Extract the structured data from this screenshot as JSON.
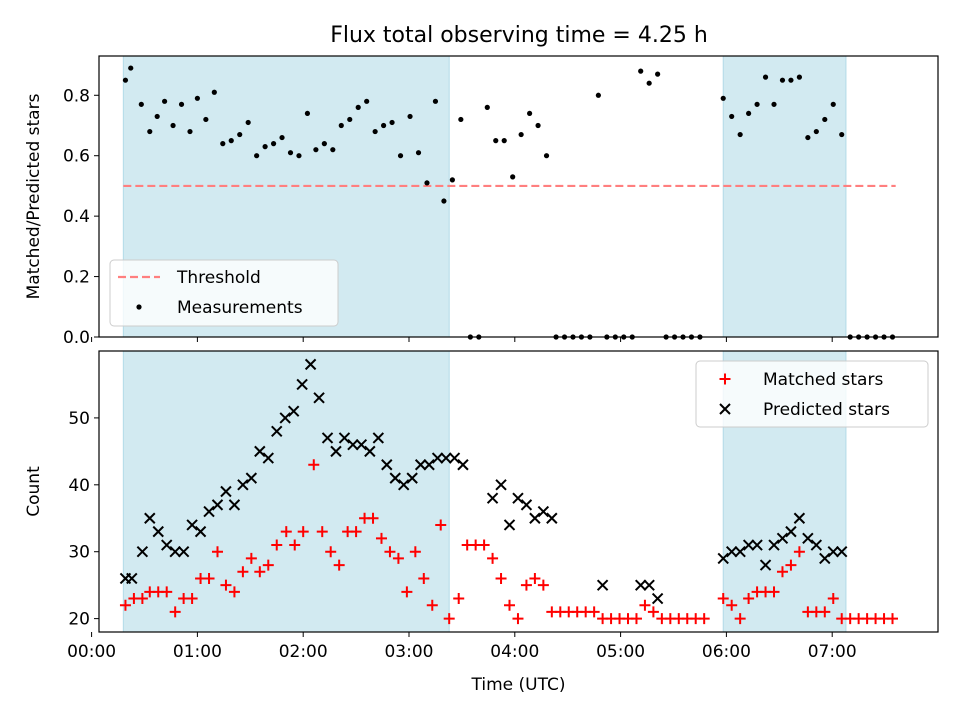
{
  "title": "Flux total observing time = 4.25 h",
  "colors": {
    "background": "#ffffff",
    "shade": "#add8e6",
    "threshold": "#ff7f7f",
    "measurements": "#000000",
    "matched": "#ff0000",
    "predicted": "#000000"
  },
  "chart_data": [
    {
      "type": "scatter",
      "panel": "top",
      "xlabel": "",
      "ylabel": "Matched/Predicted stars",
      "xlim": [
        0.07,
        8.0
      ],
      "ylim": [
        0,
        0.93
      ],
      "yticks": [
        0.0,
        0.2,
        0.4,
        0.6,
        0.8
      ],
      "ytick_labels": [
        "0.0",
        "0.2",
        "0.4",
        "0.6",
        "0.8"
      ],
      "xticks": [
        0,
        1,
        2,
        3,
        4,
        5,
        6,
        7
      ],
      "grid": false,
      "legend": {
        "placement": "lower-left",
        "entries": [
          "Threshold",
          "Measurements"
        ]
      },
      "shaded_intervals": [
        [
          0.3,
          3.38
        ],
        [
          5.97,
          7.13
        ]
      ],
      "threshold": {
        "name": "Threshold",
        "y": 0.5,
        "x_range": [
          0.3,
          7.6
        ]
      },
      "series": [
        {
          "name": "Measurements",
          "points": [
            [
              0.32,
              0.85
            ],
            [
              0.37,
              0.89
            ],
            [
              0.47,
              0.77
            ],
            [
              0.55,
              0.68
            ],
            [
              0.62,
              0.73
            ],
            [
              0.69,
              0.78
            ],
            [
              0.77,
              0.7
            ],
            [
              0.85,
              0.77
            ],
            [
              0.93,
              0.68
            ],
            [
              1.0,
              0.79
            ],
            [
              1.08,
              0.72
            ],
            [
              1.16,
              0.81
            ],
            [
              1.24,
              0.64
            ],
            [
              1.32,
              0.65
            ],
            [
              1.4,
              0.67
            ],
            [
              1.48,
              0.71
            ],
            [
              1.56,
              0.6
            ],
            [
              1.64,
              0.63
            ],
            [
              1.72,
              0.64
            ],
            [
              1.8,
              0.66
            ],
            [
              1.88,
              0.61
            ],
            [
              1.96,
              0.6
            ],
            [
              2.04,
              0.74
            ],
            [
              2.12,
              0.62
            ],
            [
              2.2,
              0.64
            ],
            [
              2.28,
              0.62
            ],
            [
              2.36,
              0.7
            ],
            [
              2.44,
              0.72
            ],
            [
              2.52,
              0.76
            ],
            [
              2.6,
              0.78
            ],
            [
              2.68,
              0.68
            ],
            [
              2.76,
              0.7
            ],
            [
              2.84,
              0.71
            ],
            [
              2.92,
              0.6
            ],
            [
              3.01,
              0.73
            ],
            [
              3.09,
              0.61
            ],
            [
              3.17,
              0.51
            ],
            [
              3.25,
              0.78
            ],
            [
              3.33,
              0.45
            ],
            [
              3.41,
              0.52
            ],
            [
              3.49,
              0.72
            ],
            [
              3.58,
              0.0
            ],
            [
              3.66,
              0.0
            ],
            [
              3.74,
              0.76
            ],
            [
              3.82,
              0.65
            ],
            [
              3.9,
              0.65
            ],
            [
              3.98,
              0.53
            ],
            [
              4.06,
              0.67
            ],
            [
              4.14,
              0.74
            ],
            [
              4.22,
              0.7
            ],
            [
              4.3,
              0.6
            ],
            [
              4.39,
              0.0
            ],
            [
              4.47,
              0.0
            ],
            [
              4.55,
              0.0
            ],
            [
              4.63,
              0.0
            ],
            [
              4.71,
              0.0
            ],
            [
              4.79,
              0.8
            ],
            [
              4.87,
              0.0
            ],
            [
              4.95,
              0.0
            ],
            [
              5.03,
              0.0
            ],
            [
              5.11,
              0.0
            ],
            [
              5.19,
              0.88
            ],
            [
              5.27,
              0.84
            ],
            [
              5.35,
              0.87
            ],
            [
              5.43,
              0.0
            ],
            [
              5.51,
              0.0
            ],
            [
              5.59,
              0.0
            ],
            [
              5.67,
              0.0
            ],
            [
              5.75,
              0.0
            ],
            [
              5.97,
              0.79
            ],
            [
              6.05,
              0.73
            ],
            [
              6.13,
              0.67
            ],
            [
              6.21,
              0.74
            ],
            [
              6.29,
              0.77
            ],
            [
              6.37,
              0.86
            ],
            [
              6.45,
              0.77
            ],
            [
              6.53,
              0.85
            ],
            [
              6.61,
              0.85
            ],
            [
              6.69,
              0.86
            ],
            [
              6.77,
              0.66
            ],
            [
              6.85,
              0.68
            ],
            [
              6.93,
              0.72
            ],
            [
              7.01,
              0.77
            ],
            [
              7.09,
              0.67
            ],
            [
              7.17,
              0.0
            ],
            [
              7.25,
              0.0
            ],
            [
              7.33,
              0.0
            ],
            [
              7.41,
              0.0
            ],
            [
              7.49,
              0.0
            ],
            [
              7.57,
              0.0
            ]
          ]
        }
      ]
    },
    {
      "type": "scatter",
      "panel": "bottom",
      "xlabel": "Time (UTC)",
      "ylabel": "Count",
      "xlim": [
        0.07,
        8.0
      ],
      "ylim": [
        18,
        60
      ],
      "yticks": [
        20,
        30,
        40,
        50
      ],
      "ytick_labels": [
        "20",
        "30",
        "40",
        "50"
      ],
      "xticks": [
        0,
        1,
        2,
        3,
        4,
        5,
        6,
        7
      ],
      "xtick_labels": [
        "00:00",
        "01:00",
        "02:00",
        "03:00",
        "04:00",
        "05:00",
        "06:00",
        "07:00"
      ],
      "grid": false,
      "legend": {
        "placement": "top-right",
        "entries": [
          "Matched stars",
          "Predicted stars"
        ]
      },
      "shaded_intervals": [
        [
          0.3,
          3.38
        ],
        [
          5.97,
          7.13
        ]
      ],
      "series": [
        {
          "name": "Matched stars",
          "marker": "+",
          "points": [
            [
              0.32,
              22
            ],
            [
              0.4,
              23
            ],
            [
              0.48,
              23
            ],
            [
              0.55,
              24
            ],
            [
              0.63,
              24
            ],
            [
              0.71,
              24
            ],
            [
              0.79,
              21
            ],
            [
              0.87,
              23
            ],
            [
              0.95,
              23
            ],
            [
              1.03,
              26
            ],
            [
              1.11,
              26
            ],
            [
              1.19,
              30
            ],
            [
              1.27,
              25
            ],
            [
              1.35,
              24
            ],
            [
              1.43,
              27
            ],
            [
              1.51,
              29
            ],
            [
              1.59,
              27
            ],
            [
              1.67,
              28
            ],
            [
              1.75,
              31
            ],
            [
              1.84,
              33
            ],
            [
              1.92,
              31
            ],
            [
              2.0,
              33
            ],
            [
              2.1,
              43
            ],
            [
              2.18,
              33
            ],
            [
              2.26,
              30
            ],
            [
              2.34,
              28
            ],
            [
              2.42,
              33
            ],
            [
              2.5,
              33
            ],
            [
              2.58,
              35
            ],
            [
              2.66,
              35
            ],
            [
              2.74,
              32
            ],
            [
              2.82,
              30
            ],
            [
              2.9,
              29
            ],
            [
              2.98,
              24
            ],
            [
              3.06,
              30
            ],
            [
              3.14,
              26
            ],
            [
              3.22,
              22
            ],
            [
              3.3,
              34
            ],
            [
              3.38,
              20
            ],
            [
              3.47,
              23
            ],
            [
              3.55,
              31
            ],
            [
              3.63,
              31
            ],
            [
              3.71,
              31
            ],
            [
              3.79,
              29
            ],
            [
              3.87,
              26
            ],
            [
              3.95,
              22
            ],
            [
              4.03,
              20
            ],
            [
              4.11,
              25
            ],
            [
              4.19,
              26
            ],
            [
              4.27,
              25
            ],
            [
              4.35,
              21
            ],
            [
              4.43,
              21
            ],
            [
              4.51,
              21
            ],
            [
              4.59,
              21
            ],
            [
              4.67,
              21
            ],
            [
              4.75,
              21
            ],
            [
              4.83,
              20
            ],
            [
              4.91,
              20
            ],
            [
              4.99,
              20
            ],
            [
              5.07,
              20
            ],
            [
              5.15,
              20
            ],
            [
              5.23,
              22
            ],
            [
              5.31,
              21
            ],
            [
              5.39,
              20
            ],
            [
              5.47,
              20
            ],
            [
              5.55,
              20
            ],
            [
              5.63,
              20
            ],
            [
              5.71,
              20
            ],
            [
              5.79,
              20
            ],
            [
              5.97,
              23
            ],
            [
              6.05,
              22
            ],
            [
              6.13,
              20
            ],
            [
              6.21,
              23
            ],
            [
              6.29,
              24
            ],
            [
              6.37,
              24
            ],
            [
              6.45,
              24
            ],
            [
              6.53,
              27
            ],
            [
              6.61,
              28
            ],
            [
              6.69,
              30
            ],
            [
              6.77,
              21
            ],
            [
              6.85,
              21
            ],
            [
              6.93,
              21
            ],
            [
              7.01,
              23
            ],
            [
              7.09,
              20
            ],
            [
              7.17,
              20
            ],
            [
              7.25,
              20
            ],
            [
              7.33,
              20
            ],
            [
              7.41,
              20
            ],
            [
              7.49,
              20
            ],
            [
              7.57,
              20
            ]
          ]
        },
        {
          "name": "Predicted stars",
          "marker": "x",
          "points": [
            [
              0.32,
              26
            ],
            [
              0.38,
              26
            ],
            [
              0.48,
              30
            ],
            [
              0.55,
              35
            ],
            [
              0.63,
              33
            ],
            [
              0.71,
              31
            ],
            [
              0.79,
              30
            ],
            [
              0.87,
              30
            ],
            [
              0.95,
              34
            ],
            [
              1.03,
              33
            ],
            [
              1.11,
              36
            ],
            [
              1.19,
              37
            ],
            [
              1.27,
              39
            ],
            [
              1.35,
              37
            ],
            [
              1.43,
              40
            ],
            [
              1.51,
              41
            ],
            [
              1.59,
              45
            ],
            [
              1.67,
              44
            ],
            [
              1.75,
              48
            ],
            [
              1.83,
              50
            ],
            [
              1.91,
              51
            ],
            [
              1.99,
              55
            ],
            [
              2.07,
              58
            ],
            [
              2.15,
              53
            ],
            [
              2.23,
              47
            ],
            [
              2.31,
              45
            ],
            [
              2.39,
              47
            ],
            [
              2.47,
              46
            ],
            [
              2.55,
              46
            ],
            [
              2.63,
              45
            ],
            [
              2.71,
              47
            ],
            [
              2.79,
              43
            ],
            [
              2.87,
              41
            ],
            [
              2.95,
              40
            ],
            [
              3.03,
              41
            ],
            [
              3.11,
              43
            ],
            [
              3.19,
              43
            ],
            [
              3.27,
              44
            ],
            [
              3.35,
              44
            ],
            [
              3.43,
              44
            ],
            [
              3.51,
              43
            ],
            [
              3.79,
              38
            ],
            [
              3.87,
              40
            ],
            [
              3.95,
              34
            ],
            [
              4.03,
              38
            ],
            [
              4.11,
              37
            ],
            [
              4.19,
              35
            ],
            [
              4.27,
              36
            ],
            [
              4.35,
              35
            ],
            [
              4.83,
              25
            ],
            [
              5.19,
              25
            ],
            [
              5.27,
              25
            ],
            [
              5.35,
              23
            ],
            [
              5.97,
              29
            ],
            [
              6.05,
              30
            ],
            [
              6.13,
              30
            ],
            [
              6.21,
              31
            ],
            [
              6.29,
              31
            ],
            [
              6.37,
              28
            ],
            [
              6.45,
              31
            ],
            [
              6.53,
              32
            ],
            [
              6.61,
              33
            ],
            [
              6.69,
              35
            ],
            [
              6.77,
              32
            ],
            [
              6.85,
              31
            ],
            [
              6.93,
              29
            ],
            [
              7.01,
              30
            ],
            [
              7.09,
              30
            ]
          ]
        }
      ]
    }
  ]
}
